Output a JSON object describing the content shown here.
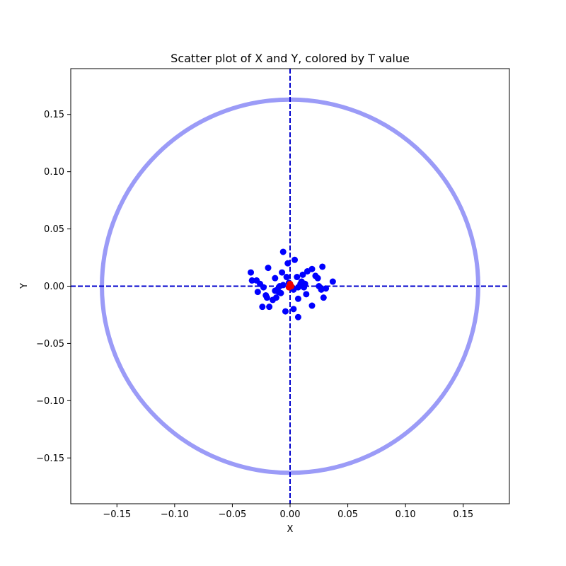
{
  "chart_data": {
    "type": "scatter",
    "title": "Scatter plot of X and Y, colored by T value",
    "xlabel": "X",
    "ylabel": "Y",
    "xlim": [
      -0.19,
      0.19
    ],
    "ylim": [
      -0.19,
      0.19
    ],
    "xticks": [
      -0.15,
      -0.1,
      -0.05,
      0.0,
      0.05,
      0.1,
      0.15
    ],
    "yticks": [
      -0.15,
      -0.1,
      -0.05,
      0.0,
      0.05,
      0.1,
      0.15
    ],
    "xtick_labels": [
      "−0.15",
      "−0.10",
      "−0.05",
      "0.00",
      "0.05",
      "0.10",
      "0.15"
    ],
    "ytick_labels": [
      "−0.15",
      "−0.10",
      "−0.05",
      "0.00",
      "0.05",
      "0.10",
      "0.15"
    ],
    "grid": false,
    "reference_lines": {
      "x": 0,
      "y": 0,
      "style": "dashed",
      "color": "#0000cc"
    },
    "circle": {
      "center": [
        0,
        0
      ],
      "radius": 0.163,
      "color": "#9b9bf7"
    },
    "series": [
      {
        "color": "#0000ff",
        "points": [
          [
            -0.034,
            0.012
          ],
          [
            -0.033,
            0.005
          ],
          [
            -0.029,
            0.005
          ],
          [
            -0.028,
            -0.005
          ],
          [
            -0.026,
            0.002
          ],
          [
            -0.024,
            -0.018
          ],
          [
            -0.023,
            -0.001
          ],
          [
            -0.021,
            -0.008
          ],
          [
            -0.02,
            -0.01
          ],
          [
            -0.019,
            0.016
          ],
          [
            -0.018,
            -0.018
          ],
          [
            -0.015,
            -0.012
          ],
          [
            -0.013,
            0.007
          ],
          [
            -0.013,
            -0.004
          ],
          [
            -0.012,
            -0.01
          ],
          [
            -0.011,
            -0.003
          ],
          [
            -0.01,
            -0.005
          ],
          [
            -0.009,
            0.0
          ],
          [
            -0.008,
            -0.006
          ],
          [
            -0.007,
            0.012
          ],
          [
            -0.006,
            0.001
          ],
          [
            -0.006,
            0.03
          ],
          [
            -0.004,
            -0.022
          ],
          [
            -0.003,
            0.008
          ],
          [
            -0.002,
            0.02
          ],
          [
            -0.001,
            0.003
          ],
          [
            0.003,
            -0.003
          ],
          [
            0.003,
            -0.02
          ],
          [
            0.004,
            0.023
          ],
          [
            0.006,
            0.008
          ],
          [
            0.007,
            -0.001
          ],
          [
            0.007,
            -0.011
          ],
          [
            0.007,
            -0.027
          ],
          [
            0.009,
            0.002
          ],
          [
            0.01,
            0.004
          ],
          [
            0.011,
            0.01
          ],
          [
            0.012,
            -0.001
          ],
          [
            0.013,
            0.002
          ],
          [
            0.014,
            -0.007
          ],
          [
            0.015,
            0.013
          ],
          [
            0.019,
            0.015
          ],
          [
            0.019,
            -0.017
          ],
          [
            0.022,
            0.009
          ],
          [
            0.024,
            0.007
          ],
          [
            0.025,
            0.0
          ],
          [
            0.027,
            -0.003
          ],
          [
            0.028,
            0.017
          ],
          [
            0.029,
            -0.01
          ],
          [
            0.031,
            -0.002
          ],
          [
            0.037,
            0.004
          ]
        ]
      },
      {
        "color": "#ee0000",
        "points": [
          [
            0.0,
            0.002
          ],
          [
            0.001,
            0.0
          ],
          [
            -0.001,
            -0.001
          ]
        ]
      }
    ]
  }
}
